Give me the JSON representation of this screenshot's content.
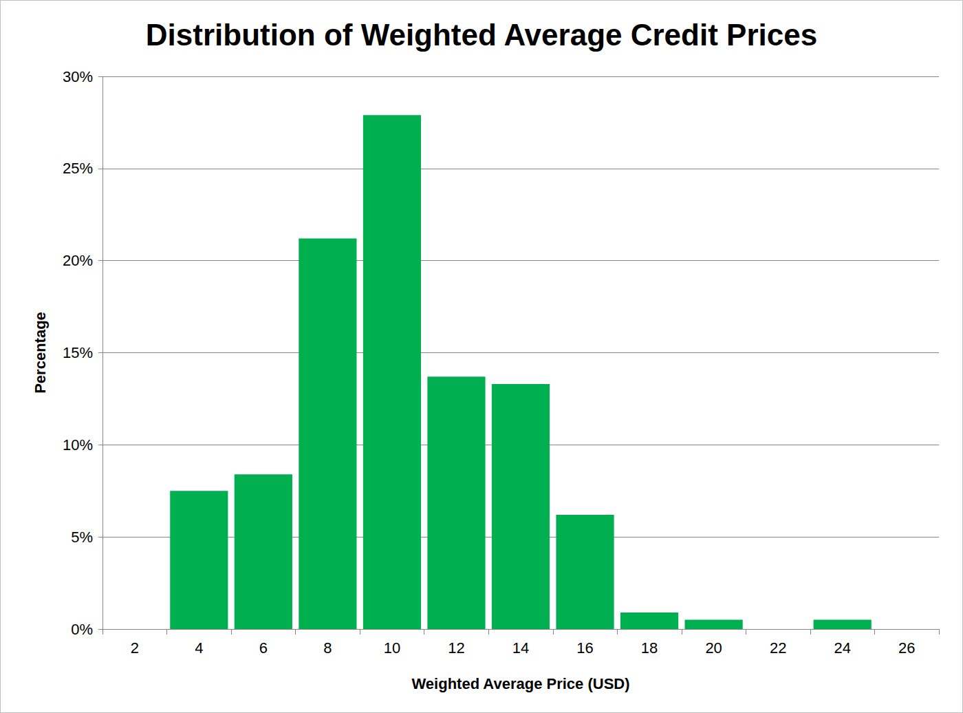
{
  "chart_data": {
    "type": "bar",
    "title": "Distribution of Weighted Average Credit Prices",
    "x_label": "Weighted Average Price (USD)",
    "y_label": "Percentage",
    "categories": [
      "2",
      "4",
      "6",
      "8",
      "10",
      "12",
      "14",
      "16",
      "18",
      "20",
      "22",
      "24",
      "26"
    ],
    "values": [
      0,
      7.5,
      8.4,
      21.2,
      27.9,
      13.7,
      13.3,
      6.2,
      0.9,
      0.5,
      0,
      0.5,
      0
    ],
    "color": "#00b050",
    "ylim": [
      0,
      30
    ],
    "yticks": [
      {
        "value": 0,
        "label": "0%"
      },
      {
        "value": 5,
        "label": "5%"
      },
      {
        "value": 10,
        "label": "10%"
      },
      {
        "value": 15,
        "label": "15%"
      },
      {
        "value": 20,
        "label": "20%"
      },
      {
        "value": 25,
        "label": "25%"
      },
      {
        "value": 30,
        "label": "30%"
      }
    ],
    "grid": true
  }
}
